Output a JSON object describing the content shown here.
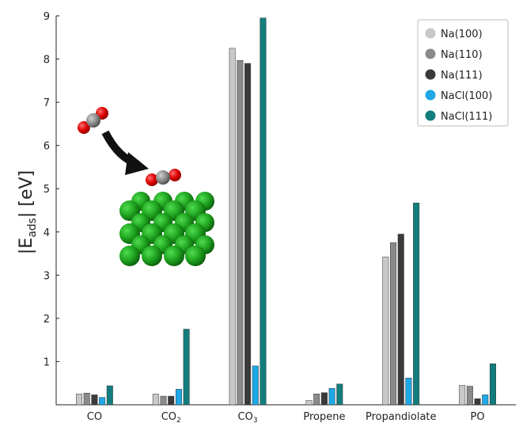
{
  "chart_data": {
    "type": "bar",
    "title": "",
    "xlabel": "",
    "ylabel": "|E_ads| [eV]",
    "ylim": [
      0,
      9
    ],
    "yticks": [
      1,
      2,
      3,
      4,
      5,
      6,
      7,
      8,
      9
    ],
    "categories": [
      "CO",
      "CO2",
      "CO3",
      "Propene",
      "Propandiolate",
      "PO"
    ],
    "category_display": [
      {
        "base": "CO",
        "sub": ""
      },
      {
        "base": "CO",
        "sub": "2"
      },
      {
        "base": "CO",
        "sub": "3"
      },
      {
        "base": "Propene",
        "sub": ""
      },
      {
        "base": "Propandiolate",
        "sub": ""
      },
      {
        "base": "PO",
        "sub": ""
      }
    ],
    "series": [
      {
        "name": "Na(100)",
        "color": "#c8c8c8",
        "values": [
          0.25,
          0.25,
          8.25,
          0.1,
          3.42,
          0.45
        ]
      },
      {
        "name": "Na(110)",
        "color": "#8a8a8a",
        "values": [
          0.27,
          0.2,
          7.97,
          0.25,
          3.75,
          0.43
        ]
      },
      {
        "name": "Na(111)",
        "color": "#3a3a3a",
        "values": [
          0.23,
          0.2,
          7.9,
          0.28,
          3.95,
          0.14
        ]
      },
      {
        "name": "NaCl(100)",
        "color": "#1ea8e6",
        "values": [
          0.17,
          0.36,
          0.9,
          0.38,
          0.62,
          0.23
        ]
      },
      {
        "name": "NaCl(111)",
        "color": "#137d7d",
        "values": [
          0.44,
          1.75,
          8.95,
          0.48,
          4.67,
          0.95
        ]
      }
    ],
    "legend": "top-right",
    "grid": false
  }
}
